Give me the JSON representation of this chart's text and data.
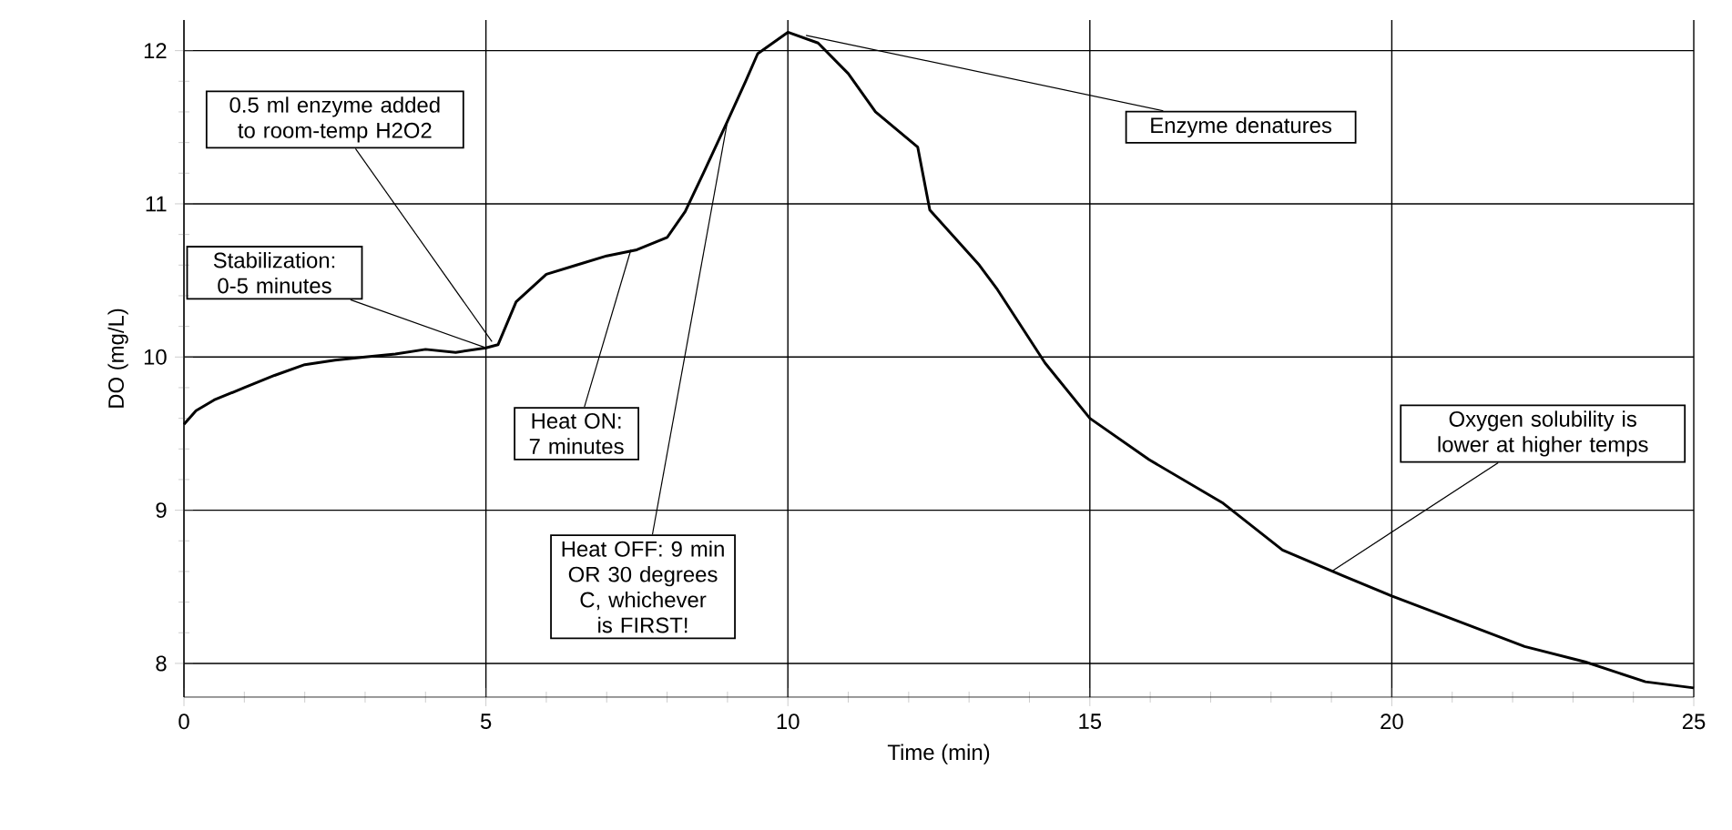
{
  "chart_data": {
    "type": "line",
    "xlabel": "Time (min)",
    "ylabel": "DO (mg/L)",
    "xlim": [
      0,
      25
    ],
    "ylim": [
      7.78,
      12.2
    ],
    "xticks": [
      0,
      5,
      10,
      15,
      20,
      25
    ],
    "yticks": [
      8,
      9,
      10,
      11,
      12
    ],
    "grid": true,
    "marker": "none",
    "line_style": "solid",
    "series": [
      {
        "color": "#000000",
        "x": [
          0,
          0.2,
          0.5,
          1,
          1.5,
          2,
          2.5,
          3,
          3.5,
          4,
          4.5,
          5,
          5.2,
          5.5,
          6,
          6.5,
          7,
          7.5,
          8,
          8.3,
          8.6,
          9,
          9.3,
          9.5,
          10,
          10.5,
          11,
          11.45,
          12.15,
          12.35,
          13.17,
          13.47,
          14.26,
          15,
          15.98,
          17.19,
          18.19,
          19.2,
          20,
          21.2,
          22.2,
          23.2,
          24.2,
          25
        ],
        "values": [
          9.56,
          9.65,
          9.72,
          9.8,
          9.88,
          9.95,
          9.98,
          10.0,
          10.02,
          10.05,
          10.03,
          10.06,
          10.08,
          10.36,
          10.54,
          10.6,
          10.66,
          10.7,
          10.78,
          10.95,
          11.2,
          11.54,
          11.8,
          11.98,
          12.12,
          12.05,
          11.85,
          11.6,
          11.37,
          10.96,
          10.6,
          10.44,
          9.96,
          9.6,
          9.33,
          9.05,
          8.74,
          8.57,
          8.44,
          8.26,
          8.11,
          8.01,
          7.88,
          7.84
        ]
      }
    ],
    "annotations": [
      {
        "text": "Stabilization: 0-5 minutes",
        "x": 5,
        "y": 10.06
      },
      {
        "text": "0.5 ml enzyme added to room-temp H2O2",
        "x": 5.1,
        "y": 10.1
      },
      {
        "text": "Enzyme denatures",
        "x": 10.3,
        "y": 12.1
      },
      {
        "text": "Heat ON: 7 minutes",
        "x": 7.4,
        "y": 10.7
      },
      {
        "text": "Heat OFF: 9 min OR 30 degrees C, whichever is FIRST!",
        "x": 9,
        "y": 11.54
      },
      {
        "text": "Oxygen solubility is lower at higher temps",
        "x": 19,
        "y": 8.6
      }
    ]
  }
}
